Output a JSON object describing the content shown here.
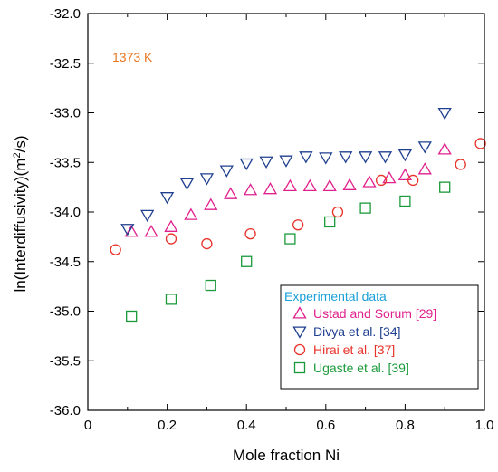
{
  "chart_data": {
    "type": "scatter",
    "xlabel": "Mole fraction Ni",
    "ylabel_main": "ln(Interdiffusivity)(m",
    "ylabel_sup": "2",
    "ylabel_tail": "/s)",
    "xlim": [
      0,
      1.0
    ],
    "ylim": [
      -36.0,
      -32.0
    ],
    "xticks": [
      0,
      0.2,
      0.4,
      0.6,
      0.8,
      1.0
    ],
    "xtick_labels": [
      "0",
      "0.2",
      "0.4",
      "0.6",
      "0.8",
      "1.0"
    ],
    "yticks": [
      -32.0,
      -32.5,
      -33.0,
      -33.5,
      -34.0,
      -34.5,
      -35.0,
      -35.5,
      -36.0
    ],
    "ytick_labels": [
      "-32.0",
      "-32.5",
      "-33.0",
      "-33.5",
      "-34.0",
      "-34.5",
      "-35.0",
      "-35.5",
      "-36.0"
    ],
    "annotation": {
      "text": "1373 K",
      "color": "#e87722"
    },
    "legend": {
      "title": "Experimental data",
      "title_color": "#1aa0d8",
      "position": "bottom-right"
    },
    "series": [
      {
        "name": "Ustad and Sorum [29]",
        "marker": "triangle-up",
        "color": "#e0208c",
        "points": [
          [
            0.11,
            -34.2
          ],
          [
            0.16,
            -34.2
          ],
          [
            0.21,
            -34.15
          ],
          [
            0.26,
            -34.03
          ],
          [
            0.31,
            -33.93
          ],
          [
            0.36,
            -33.82
          ],
          [
            0.41,
            -33.78
          ],
          [
            0.46,
            -33.77
          ],
          [
            0.51,
            -33.74
          ],
          [
            0.56,
            -33.74
          ],
          [
            0.61,
            -33.74
          ],
          [
            0.66,
            -33.73
          ],
          [
            0.71,
            -33.7
          ],
          [
            0.76,
            -33.66
          ],
          [
            0.8,
            -33.63
          ],
          [
            0.85,
            -33.57
          ],
          [
            0.9,
            -33.37
          ]
        ]
      },
      {
        "name": "Divya et al. [34]",
        "marker": "triangle-down",
        "color": "#1f3f8f",
        "points": [
          [
            0.1,
            -34.17
          ],
          [
            0.15,
            -34.03
          ],
          [
            0.2,
            -33.85
          ],
          [
            0.25,
            -33.71
          ],
          [
            0.3,
            -33.66
          ],
          [
            0.35,
            -33.58
          ],
          [
            0.4,
            -33.51
          ],
          [
            0.45,
            -33.49
          ],
          [
            0.5,
            -33.48
          ],
          [
            0.55,
            -33.44
          ],
          [
            0.6,
            -33.45
          ],
          [
            0.65,
            -33.44
          ],
          [
            0.7,
            -33.44
          ],
          [
            0.75,
            -33.44
          ],
          [
            0.8,
            -33.42
          ],
          [
            0.85,
            -33.34
          ],
          [
            0.9,
            -33.0
          ]
        ]
      },
      {
        "name": "Hirai et al. [37]",
        "marker": "circle",
        "color": "#e8322a",
        "points": [
          [
            0.07,
            -34.38
          ],
          [
            0.21,
            -34.27
          ],
          [
            0.3,
            -34.32
          ],
          [
            0.41,
            -34.22
          ],
          [
            0.53,
            -34.13
          ],
          [
            0.63,
            -34.0
          ],
          [
            0.74,
            -33.68
          ],
          [
            0.82,
            -33.68
          ],
          [
            0.94,
            -33.52
          ],
          [
            0.99,
            -33.31
          ]
        ]
      },
      {
        "name": "Ugaste et al. [39]",
        "marker": "square",
        "color": "#1a9a3a",
        "points": [
          [
            0.11,
            -35.05
          ],
          [
            0.21,
            -34.88
          ],
          [
            0.31,
            -34.74
          ],
          [
            0.4,
            -34.5
          ],
          [
            0.51,
            -34.27
          ],
          [
            0.61,
            -34.1
          ],
          [
            0.7,
            -33.96
          ],
          [
            0.8,
            -33.89
          ],
          [
            0.9,
            -33.75
          ]
        ]
      }
    ]
  }
}
